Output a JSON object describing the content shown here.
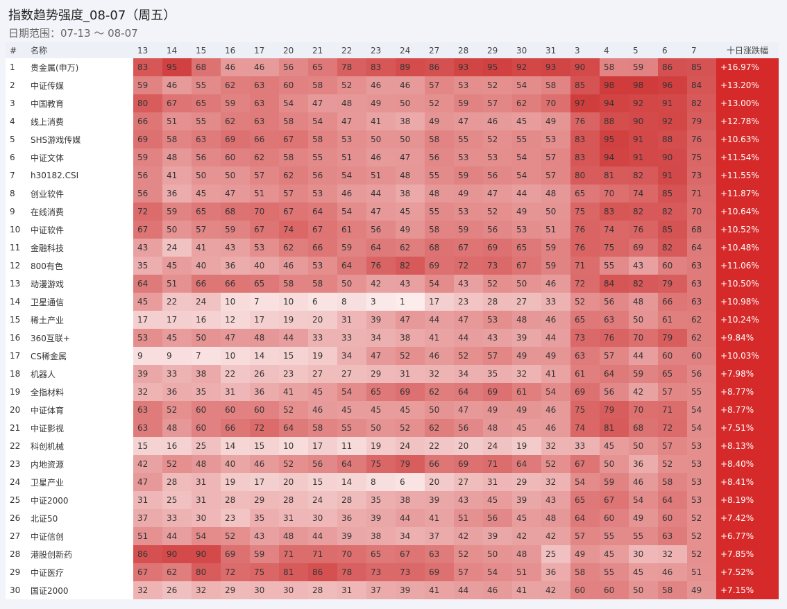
{
  "header": {
    "title": "指数趋势强度_08-07（周五）",
    "subtitle": "日期范围：07-13 ～ 08-07"
  },
  "table": {
    "index_label": "#",
    "name_label": "名称",
    "dates": [
      "13",
      "14",
      "15",
      "16",
      "17",
      "20",
      "21",
      "22",
      "23",
      "24",
      "27",
      "28",
      "29",
      "30",
      "31",
      "3",
      "4",
      "5",
      "6",
      "7"
    ],
    "change_label": "十日涨跌幅",
    "rows": [
      {
        "rank": 1,
        "name": "贵金属(申万)",
        "values": [
          83,
          95,
          68,
          46,
          46,
          56,
          65,
          78,
          83,
          89,
          86,
          93,
          95,
          92,
          93,
          90,
          58,
          59,
          86,
          85
        ],
        "change": "+16.97%"
      },
      {
        "rank": 2,
        "name": "中证传媒",
        "values": [
          59,
          46,
          55,
          62,
          63,
          60,
          58,
          52,
          46,
          46,
          57,
          53,
          52,
          54,
          58,
          85,
          98,
          98,
          96,
          84
        ],
        "change": "+13.20%"
      },
      {
        "rank": 3,
        "name": "中国教育",
        "values": [
          80,
          67,
          65,
          59,
          63,
          54,
          47,
          48,
          49,
          50,
          52,
          59,
          57,
          62,
          70,
          97,
          94,
          92,
          91,
          82
        ],
        "change": "+13.00%"
      },
      {
        "rank": 4,
        "name": "线上消费",
        "values": [
          66,
          51,
          55,
          62,
          63,
          58,
          54,
          47,
          41,
          38,
          49,
          47,
          46,
          45,
          49,
          76,
          88,
          90,
          92,
          79
        ],
        "change": "+12.78%"
      },
      {
        "rank": 5,
        "name": "SHS游戏传媒",
        "values": [
          69,
          58,
          63,
          69,
          66,
          67,
          58,
          53,
          50,
          50,
          58,
          55,
          52,
          55,
          53,
          83,
          95,
          91,
          88,
          76
        ],
        "change": "+10.63%"
      },
      {
        "rank": 6,
        "name": "中证文体",
        "values": [
          59,
          48,
          56,
          60,
          62,
          58,
          55,
          51,
          46,
          47,
          56,
          53,
          53,
          54,
          57,
          83,
          94,
          91,
          90,
          75
        ],
        "change": "+11.54%"
      },
      {
        "rank": 7,
        "name": "h30182.CSI",
        "values": [
          56,
          41,
          50,
          50,
          57,
          62,
          56,
          54,
          51,
          48,
          55,
          59,
          56,
          54,
          57,
          80,
          81,
          82,
          91,
          73
        ],
        "change": "+11.55%"
      },
      {
        "rank": 8,
        "name": "创业软件",
        "values": [
          56,
          36,
          45,
          47,
          51,
          57,
          53,
          46,
          44,
          38,
          48,
          49,
          47,
          44,
          48,
          65,
          70,
          74,
          85,
          71
        ],
        "change": "+11.87%"
      },
      {
        "rank": 9,
        "name": "在线消费",
        "values": [
          72,
          59,
          65,
          68,
          70,
          67,
          64,
          54,
          47,
          45,
          55,
          53,
          52,
          49,
          50,
          75,
          83,
          82,
          82,
          70
        ],
        "change": "+10.64%"
      },
      {
        "rank": 10,
        "name": "中证软件",
        "values": [
          67,
          50,
          57,
          59,
          67,
          74,
          67,
          61,
          56,
          49,
          58,
          59,
          56,
          53,
          51,
          76,
          74,
          76,
          85,
          68
        ],
        "change": "+10.52%"
      },
      {
        "rank": 11,
        "name": "金融科技",
        "values": [
          43,
          24,
          41,
          43,
          53,
          62,
          66,
          59,
          64,
          62,
          68,
          67,
          69,
          65,
          59,
          76,
          75,
          69,
          82,
          64
        ],
        "change": "+10.48%"
      },
      {
        "rank": 12,
        "name": "800有色",
        "values": [
          35,
          45,
          40,
          36,
          40,
          46,
          53,
          64,
          76,
          82,
          69,
          72,
          73,
          67,
          59,
          71,
          55,
          43,
          60,
          63
        ],
        "change": "+11.06%"
      },
      {
        "rank": 13,
        "name": "动漫游戏",
        "values": [
          64,
          51,
          66,
          66,
          65,
          58,
          58,
          50,
          42,
          43,
          54,
          43,
          52,
          50,
          46,
          72,
          84,
          82,
          79,
          63
        ],
        "change": "+10.50%"
      },
      {
        "rank": 14,
        "name": "卫星通信",
        "values": [
          45,
          22,
          24,
          10,
          7,
          10,
          6,
          8,
          3,
          1,
          17,
          23,
          28,
          27,
          33,
          52,
          56,
          48,
          66,
          63
        ],
        "change": "+10.98%"
      },
      {
        "rank": 15,
        "name": "稀土产业",
        "values": [
          17,
          17,
          16,
          12,
          17,
          19,
          20,
          31,
          39,
          47,
          44,
          47,
          53,
          48,
          46,
          65,
          63,
          50,
          61,
          62
        ],
        "change": "+10.24%"
      },
      {
        "rank": 16,
        "name": "360互联+",
        "values": [
          53,
          45,
          50,
          47,
          48,
          44,
          33,
          33,
          34,
          38,
          41,
          44,
          43,
          39,
          44,
          73,
          76,
          70,
          79,
          62
        ],
        "change": "+9.84%"
      },
      {
        "rank": 17,
        "name": "CS稀金属",
        "values": [
          9,
          9,
          7,
          10,
          14,
          15,
          19,
          34,
          47,
          52,
          46,
          52,
          57,
          49,
          49,
          63,
          57,
          44,
          60,
          60
        ],
        "change": "+10.03%"
      },
      {
        "rank": 18,
        "name": "机器人",
        "values": [
          39,
          33,
          38,
          22,
          26,
          23,
          27,
          27,
          29,
          31,
          32,
          34,
          35,
          32,
          41,
          61,
          64,
          59,
          65,
          56
        ],
        "change": "+7.98%"
      },
      {
        "rank": 19,
        "name": "全指材料",
        "values": [
          32,
          36,
          35,
          31,
          36,
          41,
          45,
          54,
          65,
          69,
          62,
          64,
          69,
          61,
          54,
          69,
          56,
          42,
          57,
          55
        ],
        "change": "+8.77%"
      },
      {
        "rank": 20,
        "name": "中证体育",
        "values": [
          63,
          52,
          60,
          60,
          60,
          52,
          46,
          45,
          45,
          45,
          50,
          47,
          49,
          49,
          46,
          75,
          79,
          70,
          71,
          54
        ],
        "change": "+8.77%"
      },
      {
        "rank": 21,
        "name": "中证影视",
        "values": [
          63,
          48,
          60,
          66,
          72,
          64,
          58,
          55,
          50,
          52,
          62,
          56,
          48,
          45,
          46,
          74,
          81,
          68,
          72,
          54
        ],
        "change": "+7.51%"
      },
      {
        "rank": 22,
        "name": "科创机械",
        "values": [
          15,
          16,
          25,
          14,
          15,
          10,
          17,
          11,
          19,
          24,
          22,
          20,
          24,
          19,
          32,
          33,
          45,
          50,
          57,
          53
        ],
        "change": "+8.13%"
      },
      {
        "rank": 23,
        "name": "内地资源",
        "values": [
          42,
          52,
          48,
          40,
          46,
          52,
          56,
          64,
          75,
          79,
          66,
          69,
          71,
          64,
          52,
          67,
          50,
          36,
          52,
          53
        ],
        "change": "+8.40%"
      },
      {
        "rank": 24,
        "name": "卫星产业",
        "values": [
          47,
          28,
          31,
          19,
          17,
          20,
          15,
          14,
          8,
          6,
          20,
          27,
          31,
          29,
          32,
          54,
          59,
          46,
          58,
          53
        ],
        "change": "+8.41%"
      },
      {
        "rank": 25,
        "name": "中证2000",
        "values": [
          31,
          25,
          31,
          28,
          29,
          28,
          24,
          28,
          35,
          38,
          39,
          43,
          45,
          39,
          43,
          65,
          67,
          54,
          64,
          53
        ],
        "change": "+8.19%"
      },
      {
        "rank": 26,
        "name": "北证50",
        "values": [
          37,
          33,
          30,
          23,
          35,
          31,
          30,
          36,
          39,
          44,
          41,
          51,
          56,
          45,
          48,
          64,
          60,
          49,
          60,
          52
        ],
        "change": "+7.42%"
      },
      {
        "rank": 27,
        "name": "中证信创",
        "values": [
          51,
          44,
          54,
          52,
          43,
          48,
          44,
          39,
          38,
          34,
          37,
          42,
          39,
          42,
          42,
          57,
          55,
          55,
          63,
          52
        ],
        "change": "+6.77%"
      },
      {
        "rank": 28,
        "name": "港股创新药",
        "values": [
          86,
          90,
          90,
          69,
          59,
          71,
          71,
          70,
          65,
          67,
          63,
          52,
          50,
          48,
          25,
          49,
          45,
          30,
          32,
          52
        ],
        "change": "+7.85%"
      },
      {
        "rank": 29,
        "name": "中证医疗",
        "values": [
          67,
          62,
          80,
          72,
          75,
          81,
          86,
          78,
          73,
          73,
          69,
          57,
          54,
          51,
          36,
          58,
          55,
          45,
          46,
          51
        ],
        "change": "+7.52%"
      },
      {
        "rank": 30,
        "name": "国证2000",
        "values": [
          32,
          26,
          32,
          29,
          30,
          30,
          28,
          31,
          37,
          39,
          41,
          44,
          46,
          41,
          42,
          60,
          60,
          50,
          58,
          49
        ],
        "change": "+7.15%"
      }
    ]
  }
}
